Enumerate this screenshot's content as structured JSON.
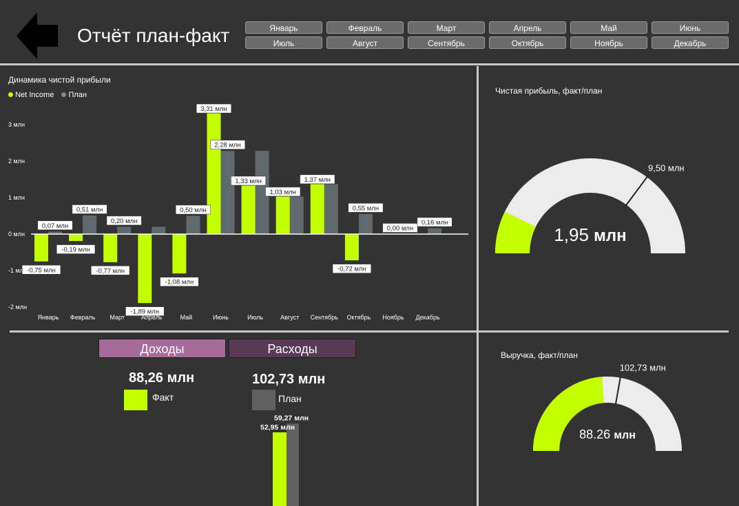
{
  "header": {
    "title": "Отчёт план-факт",
    "months": [
      "Январь",
      "Февраль",
      "Март",
      "Апрель",
      "Май",
      "Июнь",
      "Июль",
      "Август",
      "Сентябрь",
      "Октябрь",
      "Ноябрь",
      "Декабрь"
    ]
  },
  "colors": {
    "fact": "#c4ff00",
    "plan": "#606a6e",
    "background": "#333333",
    "gauge_rest": "#ececec",
    "tab_income": "#a66b9a",
    "tab_expense": "#5a3a55"
  },
  "net_income_panel": {
    "title": "Динамика чистой прибыли",
    "legend_fact": "Net Income",
    "legend_plan": "План"
  },
  "chart_data": {
    "type": "bar",
    "title": "Динамика чистой прибыли",
    "categories": [
      "Январь",
      "Февраль",
      "Март",
      "Апрель",
      "Май",
      "Июнь",
      "Июль",
      "Август",
      "Сентябрь",
      "Октябрь",
      "Ноябрь",
      "Декабрь"
    ],
    "series": [
      {
        "name": "Net Income",
        "values": [
          -0.75,
          -0.19,
          -0.77,
          -1.89,
          -1.08,
          3.31,
          1.33,
          1.03,
          1.37,
          -0.72,
          null,
          null
        ]
      },
      {
        "name": "План",
        "values": [
          0.07,
          0.51,
          0.2,
          0.2,
          0.5,
          2.28,
          2.28,
          1.03,
          1.37,
          0.55,
          0.0,
          0.16
        ]
      }
    ],
    "fact_labels": [
      "-0,75 млн",
      "-0,19 млн",
      "-0,77 млн",
      "-1,89 млн",
      "-1,08 млн",
      "3,31 млн",
      "1,33 млн",
      "1,03 млн",
      "1,37 млн",
      "-0,72 млн",
      "",
      ""
    ],
    "plan_labels": [
      "0,07 млн",
      "0,51 млн",
      "0,20 млн",
      "",
      "0,50 млн",
      "2,28 млн",
      "",
      "",
      "",
      "0,55 млн",
      "0,00 млн",
      "0,16 млн"
    ],
    "y_ticks": [
      3,
      2,
      1,
      0,
      -1,
      -2
    ],
    "y_tick_labels": [
      "3 млн",
      "2 млн",
      "1 млн",
      "0 млн",
      "-1 млн",
      "-2 млн"
    ],
    "ylim": [
      -2.1,
      3.4
    ],
    "xlabel": "",
    "ylabel": "",
    "legend": "top-left"
  },
  "net_income_gauge": {
    "title": "Чистая прибыль, факт/план",
    "value": 1.95,
    "target": 9.5,
    "max": 13.5,
    "value_label_num": "1,95",
    "value_label_unit": "млн",
    "target_label": "9,50 млн"
  },
  "revenue_gauge": {
    "title": "Выручка, факт/план",
    "value": 88.26,
    "target": 102.73,
    "max": 185,
    "value_label_num": "88.26",
    "value_label_unit": "млн",
    "target_label": "102,73 млн"
  },
  "income_expense": {
    "tab_income": "Доходы",
    "tab_expense": "Расходы",
    "fact_total": "88,26 млн",
    "plan_total": "102,73 млн",
    "legend_fact": "Факт",
    "legend_plan": "План",
    "mini_fact_value": 52.95,
    "mini_plan_value": 59.27,
    "mini_fact_label": "52,95 млн",
    "mini_plan_label": "59,27 млн"
  }
}
